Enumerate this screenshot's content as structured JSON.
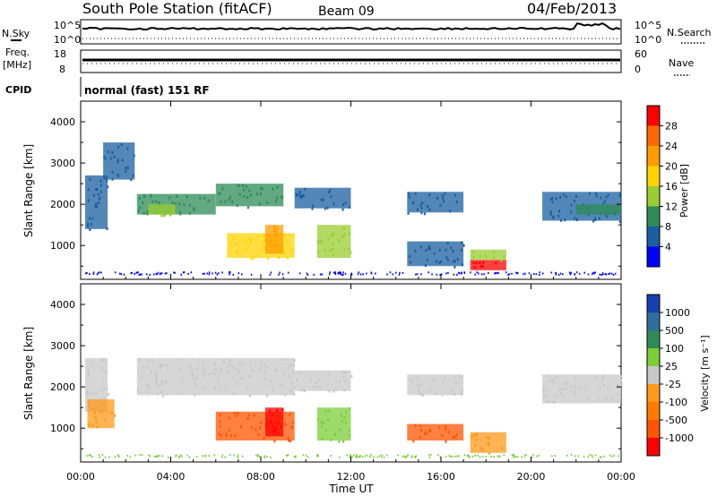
{
  "header": {
    "station": "South Pole Station (fitACF)",
    "beam": "Beam 09",
    "date": "04/Feb/2013"
  },
  "panels": {
    "nsky_label": "N.Sky",
    "nsearch_label": "N.Search",
    "freq_label_1": "Freq.",
    "freq_label_2": "[MHz]",
    "nave_label": "Nave",
    "cpid_label": "CPID",
    "cpid_value": "normal (fast) 151 RF",
    "noise_ticks": [
      "10^5",
      "10^0"
    ],
    "freq_ticks": [
      "18",
      "8"
    ],
    "nave_ticks": [
      "60",
      "0"
    ]
  },
  "axes": {
    "xlabel": "Time UT",
    "ylabel": "Slant Range [km]",
    "x_ticks": [
      "00:00",
      "04:00",
      "08:00",
      "12:00",
      "16:00",
      "20:00",
      "00:00"
    ],
    "y_ticks": [
      "1000",
      "2000",
      "3000",
      "4000"
    ]
  },
  "power_scale": {
    "label": "Power [dB]",
    "ticks": [
      "28",
      "24",
      "20",
      "16",
      "12",
      "8",
      "4"
    ],
    "colors": [
      "#ff0000",
      "#ff6a00",
      "#ff9c00",
      "#ffd400",
      "#9acd32",
      "#2e8b57",
      "#1a5fa0",
      "#0000ff"
    ]
  },
  "velocity_scale": {
    "label": "Velocity [m s⁻¹]",
    "ticks": [
      "1000",
      "500",
      "100",
      "25",
      "-25",
      "-100",
      "-500",
      "-1000"
    ],
    "colors": [
      "#1a3fb0",
      "#2f6f9f",
      "#2e8b57",
      "#7ccd3a",
      "#c8c8c8",
      "#ff9a1a",
      "#ff7a00",
      "#ff5500",
      "#ff0000"
    ]
  },
  "chart_data": [
    {
      "type": "heatmap",
      "title": "Power",
      "xlabel": "Time UT",
      "ylabel": "Slant Range [km]",
      "xlim": [
        0,
        24
      ],
      "ylim": [
        180,
        4500
      ],
      "colorbar_label": "Power [dB]",
      "colorbar_range": [
        0,
        30
      ],
      "regions": [
        {
          "t0": 0.2,
          "t1": 1.2,
          "r0": 1400,
          "r1": 2700,
          "value": 6
        },
        {
          "t0": 1.0,
          "t1": 2.4,
          "r0": 2600,
          "r1": 3500,
          "value": 5
        },
        {
          "t0": 2.5,
          "t1": 6.0,
          "r0": 1750,
          "r1": 2250,
          "value": 9
        },
        {
          "t0": 3.0,
          "t1": 4.2,
          "r0": 1750,
          "r1": 2000,
          "value": 13
        },
        {
          "t0": 6.0,
          "t1": 9.0,
          "r0": 1950,
          "r1": 2500,
          "value": 10
        },
        {
          "t0": 6.5,
          "t1": 9.5,
          "r0": 700,
          "r1": 1300,
          "value": 17
        },
        {
          "t0": 8.2,
          "t1": 9.0,
          "r0": 800,
          "r1": 1500,
          "value": 22
        },
        {
          "t0": 9.5,
          "t1": 12.0,
          "r0": 1900,
          "r1": 2400,
          "value": 7
        },
        {
          "t0": 10.5,
          "t1": 12.0,
          "r0": 700,
          "r1": 1500,
          "value": 12
        },
        {
          "t0": 14.5,
          "t1": 17.0,
          "r0": 1800,
          "r1": 2300,
          "value": 5
        },
        {
          "t0": 14.5,
          "t1": 17.0,
          "r0": 500,
          "r1": 1100,
          "value": 6
        },
        {
          "t0": 17.3,
          "t1": 18.9,
          "r0": 400,
          "r1": 650,
          "value": 28
        },
        {
          "t0": 17.3,
          "t1": 18.9,
          "r0": 650,
          "r1": 900,
          "value": 13
        },
        {
          "t0": 20.5,
          "t1": 24.0,
          "r0": 1600,
          "r1": 2300,
          "value": 6
        },
        {
          "t0": 22.0,
          "t1": 24.0,
          "r0": 1750,
          "r1": 2000,
          "value": 11
        }
      ]
    },
    {
      "type": "heatmap",
      "title": "Velocity",
      "xlabel": "Time UT",
      "ylabel": "Slant Range [km]",
      "xlim": [
        0,
        24
      ],
      "ylim": [
        180,
        4500
      ],
      "colorbar_label": "Velocity [m s⁻¹]",
      "colorbar_range": [
        -1000,
        1000
      ],
      "regions": [
        {
          "t0": 0.2,
          "t1": 1.2,
          "r0": 1400,
          "r1": 2700,
          "value": 0
        },
        {
          "t0": 0.3,
          "t1": 1.5,
          "r0": 1000,
          "r1": 1700,
          "value": -300
        },
        {
          "t0": 2.5,
          "t1": 9.5,
          "r0": 1800,
          "r1": 2700,
          "value": 0
        },
        {
          "t0": 6.0,
          "t1": 9.5,
          "r0": 700,
          "r1": 1400,
          "value": -700
        },
        {
          "t0": 8.2,
          "t1": 9.0,
          "r0": 800,
          "r1": 1500,
          "value": -1000
        },
        {
          "t0": 9.5,
          "t1": 12.0,
          "r0": 1900,
          "r1": 2400,
          "value": 0
        },
        {
          "t0": 10.5,
          "t1": 12.0,
          "r0": 700,
          "r1": 1500,
          "value": 200
        },
        {
          "t0": 14.5,
          "t1": 17.0,
          "r0": 1800,
          "r1": 2300,
          "value": 0
        },
        {
          "t0": 14.5,
          "t1": 17.0,
          "r0": 700,
          "r1": 1100,
          "value": -600
        },
        {
          "t0": 17.3,
          "t1": 18.9,
          "r0": 400,
          "r1": 900,
          "value": -300
        },
        {
          "t0": 20.5,
          "t1": 24.0,
          "r0": 1600,
          "r1": 2300,
          "value": 0
        }
      ]
    }
  ]
}
